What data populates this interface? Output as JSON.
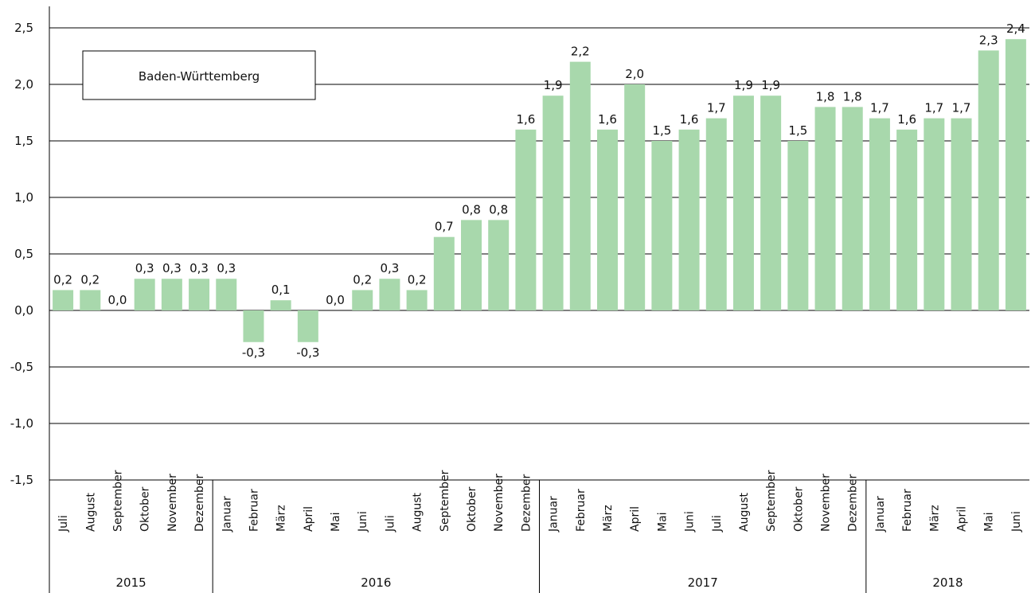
{
  "chart_data": {
    "type": "bar",
    "legend_label": "Baden-Württemberg",
    "legend_position": "top-left",
    "grid": true,
    "ylim": [
      -1.5,
      2.5
    ],
    "yticks": [
      "-1,5",
      "-1,0",
      "-0,5",
      "0,0",
      "0,5",
      "1,0",
      "1,5",
      "2,0",
      "2,5"
    ],
    "bar_color": "#a8d8ac",
    "categories": [
      "Juli",
      "August",
      "September",
      "Oktober",
      "November",
      "Dezember",
      "Januar",
      "Februar",
      "März",
      "April",
      "Mai",
      "Juni",
      "Juli",
      "August",
      "September",
      "Oktober",
      "November",
      "Dezember",
      "Januar",
      "Februar",
      "März",
      "April",
      "Mai",
      "Juni",
      "Juli",
      "August",
      "September",
      "Oktober",
      "November",
      "Dezember",
      "Januar",
      "Februar",
      "März",
      "April",
      "Mai",
      "Juni"
    ],
    "values": [
      0.18,
      0.18,
      0.0,
      0.28,
      0.28,
      0.28,
      0.28,
      -0.28,
      0.09,
      -0.28,
      0.0,
      0.18,
      0.28,
      0.18,
      0.65,
      0.8,
      0.8,
      1.6,
      1.9,
      2.2,
      1.6,
      2.0,
      1.5,
      1.6,
      1.7,
      1.9,
      1.9,
      1.5,
      1.8,
      1.8,
      1.7,
      1.6,
      1.7,
      1.7,
      2.3,
      2.4
    ],
    "value_labels": [
      "0,2",
      "0,2",
      "0,0",
      "0,3",
      "0,3",
      "0,3",
      "0,3",
      "-0,3",
      "0,1",
      "-0,3",
      "0,0",
      "0,2",
      "0,3",
      "0,2",
      "0,7",
      "0,8",
      "0,8",
      "1,6",
      "1,9",
      "2,2",
      "1,6",
      "2,0",
      "1,5",
      "1,6",
      "1,7",
      "1,9",
      "1,9",
      "1,5",
      "1,8",
      "1,8",
      "1,7",
      "1,6",
      "1,7",
      "1,7",
      "2,3",
      "2,4"
    ],
    "year_groups": [
      {
        "label": "2015",
        "count": 6
      },
      {
        "label": "2016",
        "count": 12
      },
      {
        "label": "2017",
        "count": 12
      },
      {
        "label": "2018",
        "count": 6
      }
    ]
  }
}
